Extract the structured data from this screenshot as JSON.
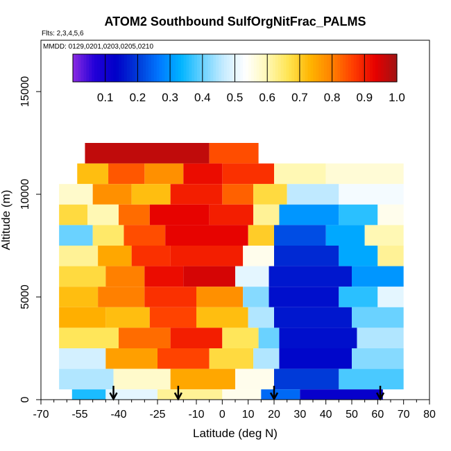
{
  "chart_data": {
    "type": "heatmap",
    "title": "ATOM2 Southbound SulfOrgNitFrac_PALMS",
    "flights_label": "Flts: 2,3,4,5,6",
    "dates_label": "MMDD: 0129,0201,0203,0205,0210",
    "xlabel": "Latitude (deg N)",
    "ylabel": "Altitude (m)",
    "xlim": [
      -70,
      80
    ],
    "ylim": [
      0,
      17500
    ],
    "x_tick_values": [
      -70,
      -55,
      -40,
      -25,
      -10,
      0,
      10,
      20,
      30,
      40,
      50,
      60,
      70,
      80
    ],
    "x_tick_labels": [
      "-70",
      "-55",
      "-40",
      "-25",
      "-10",
      "0",
      "10",
      "20",
      "30",
      "40",
      "50",
      "60",
      "70",
      "80"
    ],
    "x_minor_ticks": [
      -65,
      -60,
      -50,
      -45,
      -35,
      -30,
      -20,
      -15,
      -5,
      5,
      15,
      25,
      35,
      45,
      55,
      65,
      75
    ],
    "y_tick_values": [
      0,
      5000,
      10000,
      15000
    ],
    "y_tick_labels": [
      "0",
      "5000",
      "10000",
      "15000"
    ],
    "colorbar": {
      "range": [
        0.0,
        1.0
      ],
      "tick_values": [
        0.1,
        0.2,
        0.3,
        0.4,
        0.5,
        0.6,
        0.7,
        0.8,
        0.9,
        1.0
      ],
      "tick_labels": [
        "0.1",
        "0.2",
        "0.3",
        "0.4",
        "0.5",
        "0.6",
        "0.7",
        "0.8",
        "0.9",
        "1.0"
      ],
      "colors": [
        "#8a2be2",
        "#2200d8",
        "#0000c8",
        "#003ad8",
        "#0078ff",
        "#00b4ff",
        "#6ad2ff",
        "#c8ecff",
        "#ffffff",
        "#fff8b4",
        "#ffe450",
        "#ffb400",
        "#ff8000",
        "#ff3c00",
        "#e60000",
        "#a01414"
      ]
    },
    "rows": [
      {
        "alt": [
          11500,
          12500
        ],
        "values": [
          {
            "lat": [
              -53,
              -5
            ],
            "v": 0.97
          },
          {
            "lat": [
              -5,
              14
            ],
            "v": 0.85
          }
        ]
      },
      {
        "alt": [
          10500,
          11500
        ],
        "values": [
          {
            "lat": [
              -56,
              -44
            ],
            "v": 0.72
          },
          {
            "lat": [
              -44,
              -30
            ],
            "v": 0.84
          },
          {
            "lat": [
              -30,
              -15
            ],
            "v": 0.78
          },
          {
            "lat": [
              -15,
              0
            ],
            "v": 0.92
          },
          {
            "lat": [
              0,
              20
            ],
            "v": 0.88
          },
          {
            "lat": [
              20,
              40
            ],
            "v": 0.6
          },
          {
            "lat": [
              40,
              70
            ],
            "v": 0.57
          }
        ]
      },
      {
        "alt": [
          9500,
          10500
        ],
        "values": [
          {
            "lat": [
              -63,
              -50
            ],
            "v": 0.58
          },
          {
            "lat": [
              -50,
              -35
            ],
            "v": 0.78
          },
          {
            "lat": [
              -35,
              -20
            ],
            "v": 0.72
          },
          {
            "lat": [
              -20,
              0
            ],
            "v": 0.9
          },
          {
            "lat": [
              0,
              12
            ],
            "v": 0.83
          },
          {
            "lat": [
              12,
              25
            ],
            "v": 0.68
          },
          {
            "lat": [
              25,
              45
            ],
            "v": 0.46
          },
          {
            "lat": [
              45,
              70
            ],
            "v": 0.52
          }
        ]
      },
      {
        "alt": [
          8500,
          9500
        ],
        "values": [
          {
            "lat": [
              -63,
              -52
            ],
            "v": 0.68
          },
          {
            "lat": [
              -52,
              -40
            ],
            "v": 0.6
          },
          {
            "lat": [
              -40,
              -28
            ],
            "v": 0.82
          },
          {
            "lat": [
              -28,
              -5
            ],
            "v": 0.93
          },
          {
            "lat": [
              -5,
              12
            ],
            "v": 0.9
          },
          {
            "lat": [
              12,
              22
            ],
            "v": 0.62
          },
          {
            "lat": [
              22,
              45
            ],
            "v": 0.3
          },
          {
            "lat": [
              45,
              60
            ],
            "v": 0.36
          },
          {
            "lat": [
              60,
              70
            ],
            "v": 0.55
          }
        ]
      },
      {
        "alt": [
          7500,
          8500
        ],
        "values": [
          {
            "lat": [
              -63,
              -50
            ],
            "v": 0.4
          },
          {
            "lat": [
              -50,
              -38
            ],
            "v": 0.65
          },
          {
            "lat": [
              -38,
              -22
            ],
            "v": 0.85
          },
          {
            "lat": [
              -22,
              10
            ],
            "v": 0.93
          },
          {
            "lat": [
              10,
              20
            ],
            "v": 0.7
          },
          {
            "lat": [
              20,
              40
            ],
            "v": 0.22
          },
          {
            "lat": [
              40,
              55
            ],
            "v": 0.32
          },
          {
            "lat": [
              55,
              70
            ],
            "v": 0.6
          }
        ]
      },
      {
        "alt": [
          6500,
          7500
        ],
        "values": [
          {
            "lat": [
              -63,
              -48
            ],
            "v": 0.62
          },
          {
            "lat": [
              -48,
              -35
            ],
            "v": 0.75
          },
          {
            "lat": [
              -35,
              -20
            ],
            "v": 0.88
          },
          {
            "lat": [
              -20,
              8
            ],
            "v": 0.9
          },
          {
            "lat": [
              8,
              20
            ],
            "v": 0.55
          },
          {
            "lat": [
              20,
              45
            ],
            "v": 0.18
          },
          {
            "lat": [
              45,
              60
            ],
            "v": 0.32
          },
          {
            "lat": [
              60,
              70
            ],
            "v": 0.62
          }
        ]
      },
      {
        "alt": [
          5500,
          6500
        ],
        "values": [
          {
            "lat": [
              -63,
              -45
            ],
            "v": 0.68
          },
          {
            "lat": [
              -45,
              -30
            ],
            "v": 0.8
          },
          {
            "lat": [
              -30,
              -15
            ],
            "v": 0.92
          },
          {
            "lat": [
              -15,
              5
            ],
            "v": 0.95
          },
          {
            "lat": [
              5,
              18
            ],
            "v": 0.5
          },
          {
            "lat": [
              18,
              50
            ],
            "v": 0.16
          },
          {
            "lat": [
              50,
              70
            ],
            "v": 0.3
          }
        ]
      },
      {
        "alt": [
          4500,
          5500
        ],
        "values": [
          {
            "lat": [
              -63,
              -48
            ],
            "v": 0.72
          },
          {
            "lat": [
              -48,
              -30
            ],
            "v": 0.8
          },
          {
            "lat": [
              -30,
              -10
            ],
            "v": 0.88
          },
          {
            "lat": [
              -10,
              8
            ],
            "v": 0.78
          },
          {
            "lat": [
              8,
              18
            ],
            "v": 0.42
          },
          {
            "lat": [
              18,
              45
            ],
            "v": 0.15
          },
          {
            "lat": [
              45,
              60
            ],
            "v": 0.36
          },
          {
            "lat": [
              60,
              70
            ],
            "v": 0.5
          }
        ]
      },
      {
        "alt": [
          3500,
          4500
        ],
        "values": [
          {
            "lat": [
              -63,
              -45
            ],
            "v": 0.74
          },
          {
            "lat": [
              -45,
              -28
            ],
            "v": 0.72
          },
          {
            "lat": [
              -28,
              -10
            ],
            "v": 0.86
          },
          {
            "lat": [
              -10,
              10
            ],
            "v": 0.72
          },
          {
            "lat": [
              10,
              20
            ],
            "v": 0.45
          },
          {
            "lat": [
              20,
              50
            ],
            "v": 0.16
          },
          {
            "lat": [
              50,
              70
            ],
            "v": 0.4
          }
        ]
      },
      {
        "alt": [
          2500,
          3500
        ],
        "values": [
          {
            "lat": [
              -63,
              -40
            ],
            "v": 0.66
          },
          {
            "lat": [
              -40,
              -20
            ],
            "v": 0.82
          },
          {
            "lat": [
              -20,
              0
            ],
            "v": 0.9
          },
          {
            "lat": [
              0,
              14
            ],
            "v": 0.66
          },
          {
            "lat": [
              14,
              22
            ],
            "v": 0.4
          },
          {
            "lat": [
              22,
              52
            ],
            "v": 0.15
          },
          {
            "lat": [
              52,
              70
            ],
            "v": 0.45
          }
        ]
      },
      {
        "alt": [
          1500,
          2500
        ],
        "values": [
          {
            "lat": [
              -63,
              -45
            ],
            "v": 0.48
          },
          {
            "lat": [
              -45,
              -25
            ],
            "v": 0.76
          },
          {
            "lat": [
              -25,
              -5
            ],
            "v": 0.86
          },
          {
            "lat": [
              -5,
              12
            ],
            "v": 0.68
          },
          {
            "lat": [
              12,
              22
            ],
            "v": 0.45
          },
          {
            "lat": [
              22,
              50
            ],
            "v": 0.14
          },
          {
            "lat": [
              50,
              70
            ],
            "v": 0.42
          }
        ]
      },
      {
        "alt": [
          500,
          1500
        ],
        "values": [
          {
            "lat": [
              -63,
              -42
            ],
            "v": 0.45
          },
          {
            "lat": [
              -42,
              -20
            ],
            "v": 0.58
          },
          {
            "lat": [
              -20,
              5
            ],
            "v": 0.75
          },
          {
            "lat": [
              5,
              20
            ],
            "v": 0.55
          },
          {
            "lat": [
              20,
              45
            ],
            "v": 0.2
          },
          {
            "lat": [
              45,
              70
            ],
            "v": 0.38
          }
        ]
      },
      {
        "alt": [
          0,
          500
        ],
        "values": [
          {
            "lat": [
              -58,
              -45
            ],
            "v": 0.35
          },
          {
            "lat": [
              -45,
              -25
            ],
            "v": 0.5
          },
          {
            "lat": [
              -25,
              0
            ],
            "v": 0.62
          },
          {
            "lat": [
              0,
              15
            ],
            "v": 0.55
          },
          {
            "lat": [
              15,
              30
            ],
            "v": 0.25
          },
          {
            "lat": [
              30,
              62
            ],
            "v": 0.12
          }
        ]
      }
    ],
    "arrows_lat": [
      -42,
      -17,
      20,
      61
    ],
    "grid": false
  }
}
